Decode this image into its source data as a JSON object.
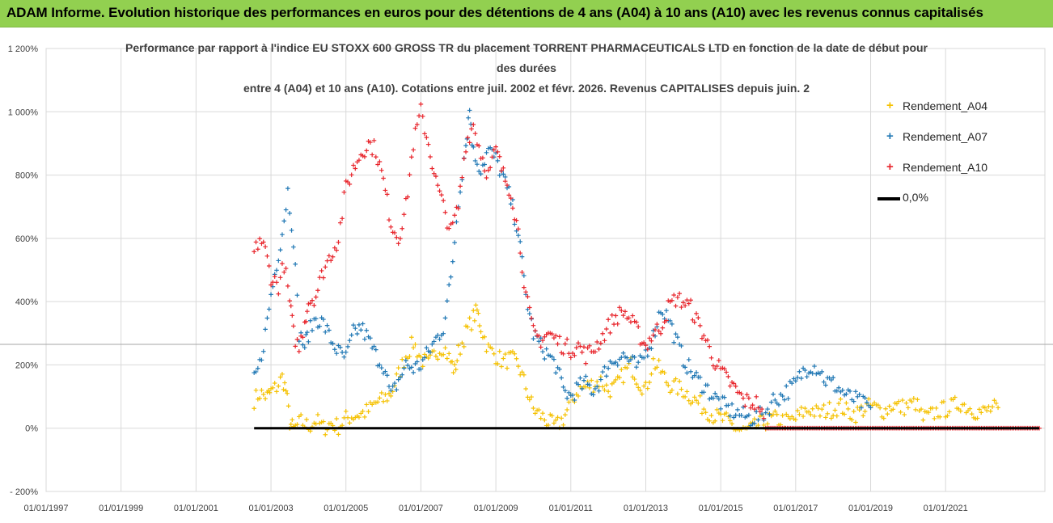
{
  "banner": {
    "title": "ADAM Informe. Evolution historique des performances en euros pour des détentions de 4 ans (A04) à 10 ans (A10) avec les revenus connus capitalisés"
  },
  "chart_data": {
    "type": "scatter",
    "title_lines": [
      "Performance par rapport à l'indice EU STOXX 600 GROSS TR  du placement TORRENT PHARMACEUTICALS LTD en fonction de la date de début pour",
      "des durées",
      "entre 4 (A04) et 10 ans (A10). Cotations entre juil. 2002 et févr. 2026. Revenus CAPITALISES depuis juin. 2"
    ],
    "xlabel": "",
    "ylabel": "",
    "x_range": [
      1997.0,
      2023.65
    ],
    "y_range": [
      -200,
      1200
    ],
    "x_ticks": [
      "01/01/1997",
      "01/01/1999",
      "01/01/2001",
      "01/01/2003",
      "01/01/2005",
      "01/01/2007",
      "01/01/2009",
      "01/01/2011",
      "01/01/2013",
      "01/01/2015",
      "01/01/2017",
      "01/01/2019",
      "01/01/2021"
    ],
    "y_ticks": [
      "- 200%",
      "0%",
      "200%",
      "400%",
      "600%",
      "800%",
      "1 000%",
      "1 200%"
    ],
    "y_tick_values": [
      -200,
      0,
      200,
      400,
      600,
      800,
      1000,
      1200
    ],
    "reference_hline": 265,
    "series": [
      {
        "name": "Rendement_A04",
        "color": "#f5c100",
        "points": [
          [
            2002.55,
            90
          ],
          [
            2002.7,
            110
          ],
          [
            2002.9,
            100
          ],
          [
            2003.0,
            115
          ],
          [
            2003.15,
            130
          ],
          [
            2003.3,
            160
          ],
          [
            2003.4,
            120
          ],
          [
            2003.5,
            20
          ],
          [
            2003.6,
            -5
          ],
          [
            2003.8,
            20
          ],
          [
            2004.0,
            5
          ],
          [
            2004.2,
            25
          ],
          [
            2004.4,
            0
          ],
          [
            2004.6,
            15
          ],
          [
            2004.8,
            5
          ],
          [
            2005.0,
            30
          ],
          [
            2005.2,
            40
          ],
          [
            2005.4,
            45
          ],
          [
            2005.6,
            55
          ],
          [
            2005.8,
            80
          ],
          [
            2006.0,
            90
          ],
          [
            2006.2,
            110
          ],
          [
            2006.4,
            170
          ],
          [
            2006.6,
            230
          ],
          [
            2006.8,
            270
          ],
          [
            2007.0,
            220
          ],
          [
            2007.2,
            200
          ],
          [
            2007.4,
            240
          ],
          [
            2007.6,
            260
          ],
          [
            2007.8,
            210
          ],
          [
            2007.9,
            180
          ],
          [
            2008.0,
            240
          ],
          [
            2008.2,
            300
          ],
          [
            2008.4,
            350
          ],
          [
            2008.5,
            370
          ],
          [
            2008.6,
            320
          ],
          [
            2008.8,
            250
          ],
          [
            2009.0,
            230
          ],
          [
            2009.2,
            210
          ],
          [
            2009.4,
            220
          ],
          [
            2009.6,
            200
          ],
          [
            2009.8,
            130
          ],
          [
            2010.0,
            60
          ],
          [
            2010.2,
            40
          ],
          [
            2010.4,
            20
          ],
          [
            2010.6,
            5
          ],
          [
            2010.8,
            30
          ],
          [
            2011.0,
            80
          ],
          [
            2011.2,
            120
          ],
          [
            2011.4,
            130
          ],
          [
            2011.6,
            140
          ],
          [
            2011.8,
            150
          ],
          [
            2012.0,
            120
          ],
          [
            2012.2,
            130
          ],
          [
            2012.4,
            170
          ],
          [
            2012.6,
            200
          ],
          [
            2012.8,
            150
          ],
          [
            2013.0,
            120
          ],
          [
            2013.2,
            210
          ],
          [
            2013.4,
            180
          ],
          [
            2013.6,
            140
          ],
          [
            2013.8,
            130
          ],
          [
            2014.0,
            120
          ],
          [
            2014.2,
            100
          ],
          [
            2014.4,
            80
          ],
          [
            2014.6,
            60
          ],
          [
            2014.8,
            40
          ],
          [
            2015.0,
            30
          ],
          [
            2015.2,
            20
          ],
          [
            2015.4,
            0
          ],
          [
            2015.6,
            -10
          ],
          [
            2015.8,
            -5
          ],
          [
            2016.0,
            10
          ],
          [
            2016.2,
            20
          ],
          [
            2016.4,
            30
          ],
          [
            2016.6,
            25
          ],
          [
            2016.8,
            20
          ],
          [
            2017.0,
            30
          ],
          [
            2017.2,
            50
          ],
          [
            2017.4,
            60
          ],
          [
            2017.6,
            45
          ],
          [
            2017.8,
            55
          ],
          [
            2018.0,
            60
          ],
          [
            2018.2,
            70
          ],
          [
            2018.4,
            50
          ],
          [
            2018.6,
            45
          ],
          [
            2018.8,
            60
          ],
          [
            2019.0,
            70
          ],
          [
            2019.2,
            60
          ],
          [
            2019.4,
            55
          ],
          [
            2019.6,
            75
          ],
          [
            2019.8,
            65
          ],
          [
            2020.0,
            70
          ],
          [
            2020.2,
            80
          ],
          [
            2020.4,
            30
          ],
          [
            2020.6,
            40
          ],
          [
            2020.8,
            55
          ],
          [
            2021.0,
            60
          ],
          [
            2021.2,
            70
          ],
          [
            2021.4,
            80
          ],
          [
            2021.6,
            65
          ],
          [
            2021.8,
            55
          ],
          [
            2022.0,
            50
          ],
          [
            2022.2,
            60
          ],
          [
            2022.4,
            65
          ]
        ]
      },
      {
        "name": "Rendement_A07",
        "color": "#1f77b4",
        "points": [
          [
            2002.55,
            150
          ],
          [
            2002.7,
            200
          ],
          [
            2002.85,
            300
          ],
          [
            2003.0,
            420
          ],
          [
            2003.15,
            520
          ],
          [
            2003.3,
            620
          ],
          [
            2003.45,
            750
          ],
          [
            2003.6,
            600
          ],
          [
            2003.75,
            300
          ],
          [
            2003.9,
            260
          ],
          [
            2004.0,
            300
          ],
          [
            2004.2,
            350
          ],
          [
            2004.4,
            330
          ],
          [
            2004.6,
            280
          ],
          [
            2004.8,
            240
          ],
          [
            2005.0,
            220
          ],
          [
            2005.2,
            300
          ],
          [
            2005.4,
            320
          ],
          [
            2005.6,
            280
          ],
          [
            2005.8,
            230
          ],
          [
            2006.0,
            200
          ],
          [
            2006.2,
            100
          ],
          [
            2006.4,
            150
          ],
          [
            2006.6,
            200
          ],
          [
            2006.8,
            190
          ],
          [
            2007.0,
            200
          ],
          [
            2007.2,
            240
          ],
          [
            2007.4,
            280
          ],
          [
            2007.6,
            320
          ],
          [
            2007.8,
            470
          ],
          [
            2008.0,
            720
          ],
          [
            2008.2,
            900
          ],
          [
            2008.3,
            1010
          ],
          [
            2008.4,
            870
          ],
          [
            2008.6,
            820
          ],
          [
            2008.8,
            880
          ],
          [
            2009.0,
            850
          ],
          [
            2009.2,
            790
          ],
          [
            2009.4,
            720
          ],
          [
            2009.6,
            620
          ],
          [
            2009.8,
            420
          ],
          [
            2010.0,
            300
          ],
          [
            2010.2,
            260
          ],
          [
            2010.4,
            230
          ],
          [
            2010.6,
            200
          ],
          [
            2010.8,
            120
          ],
          [
            2011.0,
            100
          ],
          [
            2011.2,
            130
          ],
          [
            2011.4,
            140
          ],
          [
            2011.6,
            120
          ],
          [
            2011.8,
            150
          ],
          [
            2012.0,
            200
          ],
          [
            2012.2,
            220
          ],
          [
            2012.4,
            230
          ],
          [
            2012.6,
            210
          ],
          [
            2012.8,
            190
          ],
          [
            2013.0,
            240
          ],
          [
            2013.2,
            290
          ],
          [
            2013.4,
            380
          ],
          [
            2013.6,
            350
          ],
          [
            2013.8,
            280
          ],
          [
            2014.0,
            220
          ],
          [
            2014.2,
            180
          ],
          [
            2014.4,
            150
          ],
          [
            2014.6,
            130
          ],
          [
            2014.8,
            100
          ],
          [
            2015.0,
            80
          ],
          [
            2015.2,
            60
          ],
          [
            2015.4,
            50
          ],
          [
            2015.6,
            40
          ],
          [
            2015.8,
            30
          ],
          [
            2016.0,
            35
          ],
          [
            2016.2,
            50
          ],
          [
            2016.4,
            90
          ],
          [
            2016.6,
            100
          ],
          [
            2016.8,
            120
          ],
          [
            2017.0,
            140
          ],
          [
            2017.2,
            180
          ],
          [
            2017.4,
            200
          ],
          [
            2017.6,
            190
          ],
          [
            2017.8,
            150
          ],
          [
            2018.0,
            140
          ],
          [
            2018.2,
            120
          ],
          [
            2018.4,
            100
          ],
          [
            2018.6,
            90
          ],
          [
            2018.8,
            75
          ],
          [
            2019.0,
            65
          ]
        ]
      },
      {
        "name": "Rendement_A10",
        "color": "#e8242b",
        "points": [
          [
            2002.55,
            550
          ],
          [
            2002.7,
            600
          ],
          [
            2002.85,
            560
          ],
          [
            2003.0,
            480
          ],
          [
            2003.2,
            450
          ],
          [
            2003.35,
            520
          ],
          [
            2003.5,
            400
          ],
          [
            2003.6,
            300
          ],
          [
            2003.75,
            250
          ],
          [
            2003.9,
            340
          ],
          [
            2004.0,
            400
          ],
          [
            2004.2,
            420
          ],
          [
            2004.4,
            500
          ],
          [
            2004.6,
            550
          ],
          [
            2004.8,
            600
          ],
          [
            2005.0,
            760
          ],
          [
            2005.2,
            820
          ],
          [
            2005.4,
            870
          ],
          [
            2005.6,
            900
          ],
          [
            2005.8,
            880
          ],
          [
            2006.0,
            780
          ],
          [
            2006.2,
            650
          ],
          [
            2006.4,
            600
          ],
          [
            2006.6,
            700
          ],
          [
            2006.8,
            900
          ],
          [
            2007.0,
            1000
          ],
          [
            2007.2,
            900
          ],
          [
            2007.4,
            780
          ],
          [
            2007.6,
            700
          ],
          [
            2007.8,
            620
          ],
          [
            2008.0,
            700
          ],
          [
            2008.2,
            900
          ],
          [
            2008.4,
            960
          ],
          [
            2008.6,
            870
          ],
          [
            2008.8,
            800
          ],
          [
            2009.0,
            880
          ],
          [
            2009.2,
            800
          ],
          [
            2009.4,
            750
          ],
          [
            2009.6,
            620
          ],
          [
            2009.8,
            420
          ],
          [
            2010.0,
            300
          ],
          [
            2010.2,
            280
          ],
          [
            2010.4,
            300
          ],
          [
            2010.6,
            280
          ],
          [
            2010.8,
            260
          ],
          [
            2011.0,
            250
          ],
          [
            2011.2,
            260
          ],
          [
            2011.4,
            230
          ],
          [
            2011.6,
            250
          ],
          [
            2011.8,
            280
          ],
          [
            2012.0,
            320
          ],
          [
            2012.2,
            350
          ],
          [
            2012.4,
            370
          ],
          [
            2012.6,
            340
          ],
          [
            2012.8,
            300
          ],
          [
            2013.0,
            260
          ],
          [
            2013.2,
            300
          ],
          [
            2013.4,
            320
          ],
          [
            2013.6,
            380
          ],
          [
            2013.8,
            410
          ],
          [
            2014.0,
            400
          ],
          [
            2014.2,
            380
          ],
          [
            2014.4,
            330
          ],
          [
            2014.6,
            280
          ],
          [
            2014.8,
            220
          ],
          [
            2015.0,
            180
          ],
          [
            2015.2,
            150
          ],
          [
            2015.4,
            120
          ],
          [
            2015.6,
            90
          ],
          [
            2015.8,
            80
          ],
          [
            2016.0,
            80
          ],
          [
            2016.2,
            0
          ],
          [
            2017.0,
            0
          ],
          [
            2018.0,
            0
          ],
          [
            2019.0,
            0
          ],
          [
            2020.0,
            0
          ],
          [
            2021.0,
            0
          ],
          [
            2022.0,
            0
          ],
          [
            2023.0,
            0
          ],
          [
            2023.5,
            0
          ]
        ]
      },
      {
        "name": "0,0%",
        "color": "#000000",
        "points": [
          [
            2002.55,
            0
          ],
          [
            2023.5,
            0
          ]
        ]
      }
    ],
    "legend": [
      {
        "label": "Rendement_A04",
        "marker": "+",
        "color": "#f5c100"
      },
      {
        "label": "Rendement_A07",
        "marker": "+",
        "color": "#1f77b4"
      },
      {
        "label": "Rendement_A10",
        "marker": "+",
        "color": "#e8242b"
      },
      {
        "label": "0,0%",
        "marker": "line",
        "color": "#000000"
      }
    ]
  }
}
